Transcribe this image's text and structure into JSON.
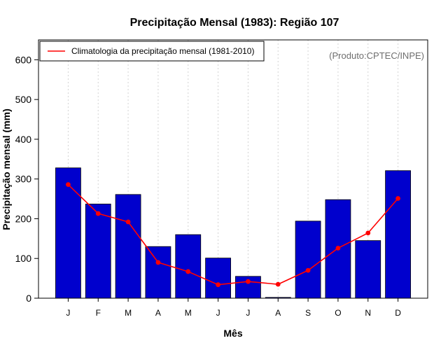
{
  "chart_data": {
    "type": "bar",
    "title": "Precipitação Mensal (1983): Região 107",
    "xlabel": "Mês",
    "ylabel": "Precipitação mensal (mm)",
    "categories": [
      "J",
      "F",
      "M",
      "A",
      "M",
      "J",
      "J",
      "A",
      "S",
      "O",
      "N",
      "D"
    ],
    "ylim": [
      0,
      650
    ],
    "yticks": [
      0,
      100,
      200,
      300,
      400,
      500,
      600
    ],
    "grid": "vertical dotted",
    "legend_position": "top-left",
    "series": [
      {
        "name": "Precipitação mensal (1983)",
        "type": "bar",
        "color": "#0000CD",
        "values": [
          328,
          237,
          261,
          130,
          160,
          101,
          55,
          2,
          194,
          248,
          145,
          321
        ]
      },
      {
        "name": "Climatologia da precipitação mensal (1981-2010)",
        "type": "line",
        "color": "#FF0000",
        "values": [
          286,
          213,
          192,
          90,
          67,
          34,
          42,
          35,
          70,
          126,
          164,
          251
        ]
      }
    ],
    "annotation": "(Produto:CPTEC/INPE)"
  }
}
